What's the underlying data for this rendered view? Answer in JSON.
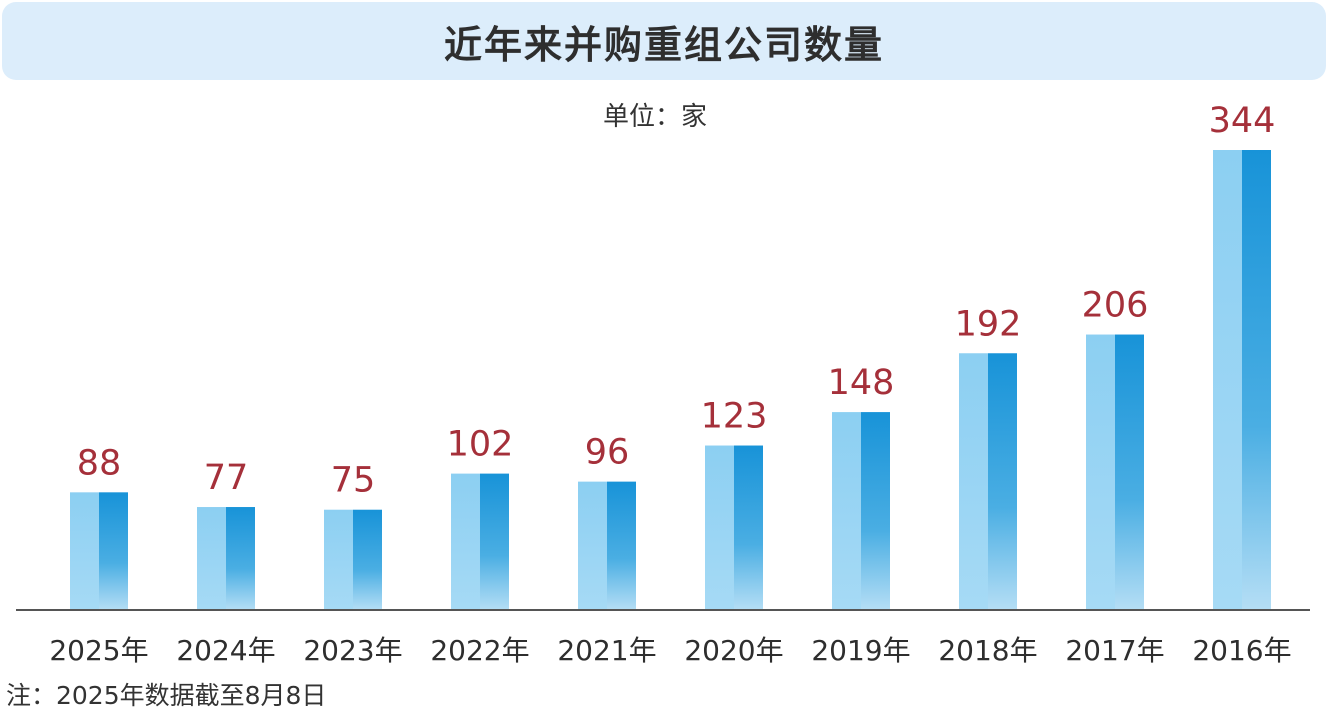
{
  "chart_data": {
    "type": "bar",
    "title": "近年来并购重组公司数量",
    "unit_label": "单位：家",
    "categories": [
      "2025年",
      "2024年",
      "2023年",
      "2022年",
      "2021年",
      "2020年",
      "2019年",
      "2018年",
      "2017年",
      "2016年"
    ],
    "values": [
      88,
      77,
      75,
      102,
      96,
      123,
      148,
      192,
      206,
      344
    ],
    "note": "注：2025年数据截至8月8日",
    "ylim": [
      0,
      344
    ],
    "grid": false,
    "colors": {
      "bar_light": "#8ccff2",
      "bar_dark": "#1893d8",
      "value_label": "#a5303a",
      "title_bg": "#dcedfb",
      "axis": "#555555"
    }
  }
}
